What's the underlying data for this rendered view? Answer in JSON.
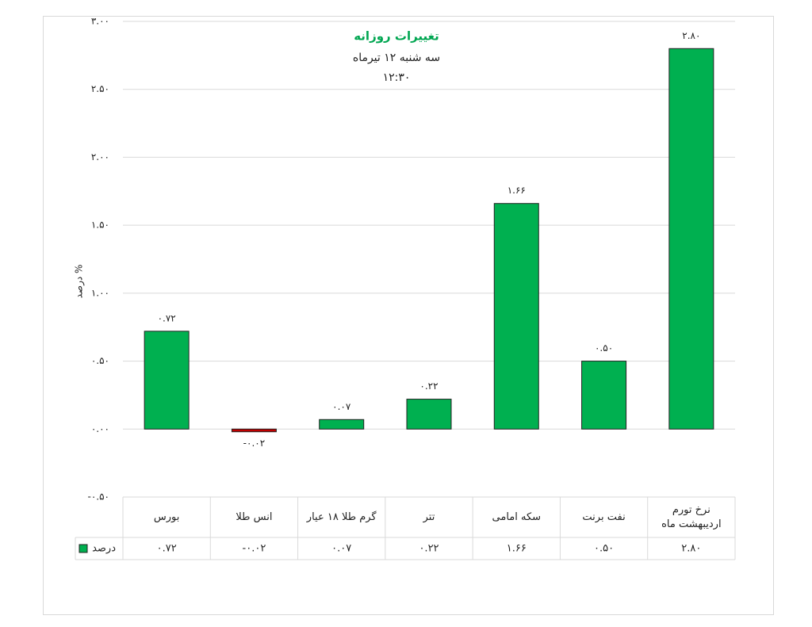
{
  "chart_data": {
    "type": "bar",
    "title": "تغییرات روزانه",
    "subtitle": "سه شنبه ۱۲ تیرماه",
    "time": "۱۲:۳۰",
    "y_label": "درصد %",
    "categories": [
      "بورس",
      "انس طلا",
      "گرم طلا ۱۸ عیار",
      "تتر",
      "سکه امامی",
      "نفت برنت",
      "نرخ تورم اردیبهشت ماه"
    ],
    "series": [
      {
        "name": "درصد",
        "color": "#00b050",
        "negative_color": "#c00000",
        "values": [
          0.72,
          -0.02,
          0.07,
          0.22,
          1.66,
          0.5,
          2.8
        ],
        "value_labels": [
          "۰.۷۲",
          "-۰.۰۲",
          "۰.۰۷",
          "۰.۲۲",
          "۱.۶۶",
          "۰.۵۰",
          "۲.۸۰"
        ]
      }
    ],
    "ylim": [
      -0.5,
      3.0
    ],
    "yticks": [
      {
        "value": -0.5,
        "label": "-۰.۵۰"
      },
      {
        "value": 0,
        "label": "۰.۰۰"
      },
      {
        "value": 0.5,
        "label": "۰.۵۰"
      },
      {
        "value": 1.0,
        "label": "۱.۰۰"
      },
      {
        "value": 1.5,
        "label": "۱.۵۰"
      },
      {
        "value": 2.0,
        "label": "۲.۰۰"
      },
      {
        "value": 2.5,
        "label": "۲.۵۰"
      },
      {
        "value": 3.0,
        "label": "۳.۰۰"
      }
    ],
    "grid": true,
    "data_table": true
  }
}
